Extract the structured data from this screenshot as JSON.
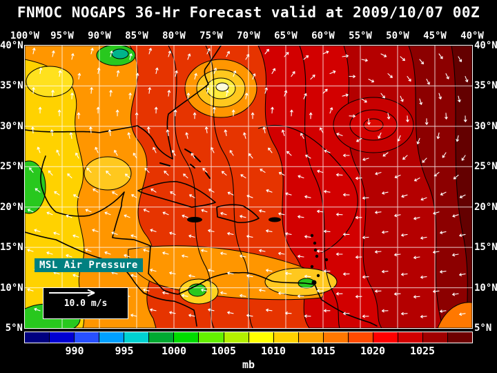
{
  "header": {
    "title": "FNMOC NOGAPS 36-Hr Forecast valid at 2009/10/07 00Z"
  },
  "map": {
    "field_label": "MSL Air Pressure",
    "wind_legend": "10.0 m/s"
  },
  "axes": {
    "lon_labels": [
      "100°W",
      "95°W",
      "90°W",
      "85°W",
      "80°W",
      "75°W",
      "70°W",
      "65°W",
      "60°W",
      "55°W",
      "50°W",
      "45°W",
      "40°W"
    ],
    "lat_labels": [
      "40°N",
      "35°N",
      "30°N",
      "25°N",
      "20°N",
      "15°N",
      "10°N",
      "5°N"
    ]
  },
  "colorbar": {
    "units": "mb",
    "ticks": [
      990,
      995,
      1000,
      1005,
      1010,
      1015,
      1020,
      1025
    ],
    "value_min": 985,
    "value_max": 1030,
    "segment_colors": [
      "#000080",
      "#0000d2",
      "#2850ff",
      "#00a0ff",
      "#00d2d2",
      "#00aa32",
      "#00dc00",
      "#64f000",
      "#b4f000",
      "#ffff00",
      "#ffd200",
      "#ffa500",
      "#ff7800",
      "#ff4b00",
      "#ff0000",
      "#d20000",
      "#a00000",
      "#6e0000"
    ]
  },
  "chart_data": {
    "type": "heatmap",
    "title": "FNMOC NOGAPS 36-Hr Forecast valid at 2009/10/07 00Z",
    "model": "NOGAPS",
    "source": "FNMOC",
    "forecast_hour": 36,
    "valid_time": "2009/10/07 00Z",
    "variable": "MSL Air Pressure",
    "units": "mb",
    "overlay": "surface wind vectors (white arrows)",
    "wind_reference_vector": "10.0 m/s",
    "lon_range_deg_west": [
      100,
      40
    ],
    "lat_range_deg_north": [
      5,
      40
    ],
    "grid_spacing_deg": 5,
    "colorbar_ticks_mb": [
      990,
      995,
      1000,
      1005,
      1010,
      1015,
      1020,
      1025
    ],
    "colorbar_colors": [
      "#000080",
      "#0000d2",
      "#2850ff",
      "#00a0ff",
      "#00d2d2",
      "#00aa32",
      "#00dc00",
      "#64f000",
      "#b4f000",
      "#ffff00",
      "#ffd200",
      "#ffa500",
      "#ff7800",
      "#ff4b00",
      "#ff0000",
      "#d20000",
      "#a00000",
      "#6e0000"
    ],
    "notable_features": [
      {
        "description": "closed low, ring of ~1005-1010 mb contours with yellow/white center",
        "approx_location": "75°W 35°N (offshore US east coast)"
      },
      {
        "description": "broad subtropical high ~1020-1025 mb, clockwise wind circulation",
        "approx_location": "central/eastern Atlantic near 55°W 30°N and eastward"
      },
      {
        "description": "lower pressures ~1000-1010 mb (yellow/green)",
        "approx_location": "western Gulf of Mexico, Mexico and eastern Pacific / Central America"
      },
      {
        "description": "easterly trade winds (arrows pointing westward)",
        "approx_location": "tropics south of 20°N"
      }
    ]
  }
}
